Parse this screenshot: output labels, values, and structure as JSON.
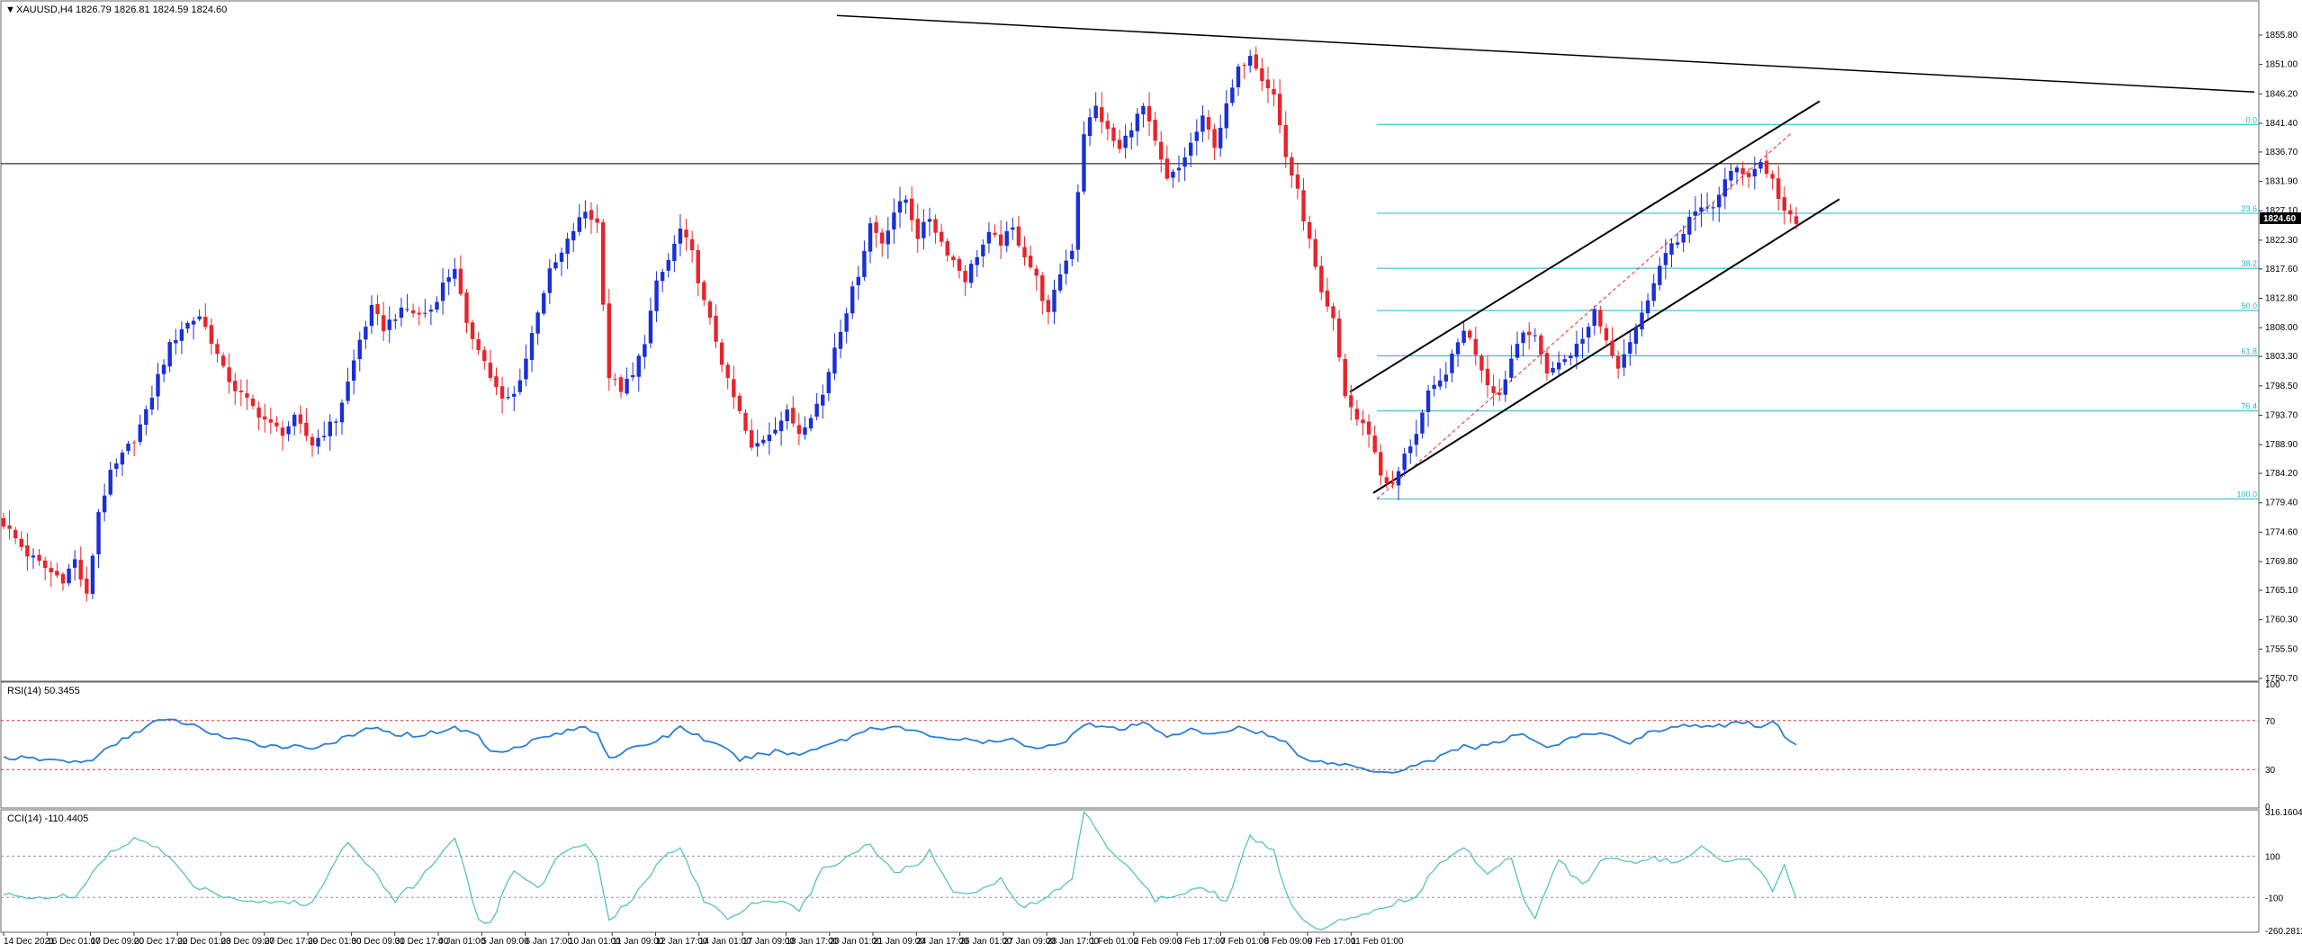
{
  "chart_data": {
    "type": "candlestick",
    "symbol": "XAUUSD,H4",
    "ohlc_header": "1826.79 1826.81 1824.59 1824.60",
    "title": "XAUUSD,H4  1826.79 1826.81 1824.59 1824.60",
    "current_price_label": "1824.60",
    "current_price": 1824.6,
    "ylim": [
      1750.7,
      1860.5
    ],
    "y_ticks": [
      "1855.80",
      "1851.00",
      "1846.20",
      "1841.40",
      "1836.70",
      "1831.90",
      "1827.10",
      "1822.30",
      "1817.60",
      "1812.80",
      "1808.00",
      "1803.30",
      "1798.50",
      "1793.70",
      "1788.90",
      "1784.20",
      "1779.40",
      "1774.60",
      "1769.80",
      "1765.10",
      "1760.30",
      "1755.50",
      "1750.70"
    ],
    "x_ticks": [
      "14 Dec 2021",
      "16 Dec 01:00",
      "17 Dec 09:00",
      "20 Dec 17:00",
      "22 Dec 01:00",
      "23 Dec 09:00",
      "27 Dec 17:00",
      "29 Dec 01:00",
      "30 Dec 09:00",
      "31 Dec 17:00",
      "4 Jan 01:00",
      "5 Jan 09:00",
      "6 Jan 17:00",
      "10 Jan 01:00",
      "11 Jan 09:00",
      "12 Jan 17:00",
      "14 Jan 01:00",
      "17 Jan 09:00",
      "18 Jan 17:00",
      "20 Jan 01:00",
      "21 Jan 09:00",
      "24 Jan 17:00",
      "26 Jan 01:00",
      "27 Jan 09:00",
      "28 Jan 17:00",
      "1 Feb 01:00",
      "2 Feb 09:00",
      "3 Feb 17:00",
      "7 Feb 01:00",
      "8 Feb 09:00",
      "9 Feb 17:00",
      "11 Feb 01:00"
    ],
    "close_anchors": [
      [
        0,
        1776
      ],
      [
        4,
        1771
      ],
      [
        8,
        1768
      ],
      [
        10,
        1767
      ],
      [
        12,
        1770
      ],
      [
        14,
        1764
      ],
      [
        16,
        1778
      ],
      [
        18,
        1784
      ],
      [
        20,
        1787
      ],
      [
        22,
        1790
      ],
      [
        24,
        1794
      ],
      [
        26,
        1800
      ],
      [
        28,
        1805
      ],
      [
        30,
        1808
      ],
      [
        33,
        1810
      ],
      [
        35,
        1806
      ],
      [
        37,
        1801
      ],
      [
        39,
        1798
      ],
      [
        42,
        1795
      ],
      [
        45,
        1792
      ],
      [
        47,
        1791
      ],
      [
        49,
        1793
      ],
      [
        52,
        1789
      ],
      [
        54,
        1791
      ],
      [
        56,
        1793
      ],
      [
        58,
        1799
      ],
      [
        60,
        1806
      ],
      [
        62,
        1811
      ],
      [
        64,
        1808
      ],
      [
        66,
        1810
      ],
      [
        68,
        1811
      ],
      [
        70,
        1810
      ],
      [
        72,
        1811
      ],
      [
        74,
        1815
      ],
      [
        76,
        1818
      ],
      [
        78,
        1808
      ],
      [
        80,
        1805
      ],
      [
        82,
        1800
      ],
      [
        84,
        1796
      ],
      [
        86,
        1797
      ],
      [
        88,
        1803
      ],
      [
        90,
        1811
      ],
      [
        92,
        1817
      ],
      [
        94,
        1820
      ],
      [
        96,
        1824
      ],
      [
        98,
        1827
      ],
      [
        100,
        1825
      ],
      [
        102,
        1800
      ],
      [
        104,
        1798
      ],
      [
        106,
        1800
      ],
      [
        108,
        1806
      ],
      [
        110,
        1815
      ],
      [
        112,
        1819
      ],
      [
        114,
        1824
      ],
      [
        116,
        1820
      ],
      [
        118,
        1812
      ],
      [
        120,
        1806
      ],
      [
        122,
        1799
      ],
      [
        124,
        1794
      ],
      [
        126,
        1788
      ],
      [
        128,
        1790
      ],
      [
        130,
        1792
      ],
      [
        132,
        1794
      ],
      [
        134,
        1791
      ],
      [
        136,
        1794
      ],
      [
        138,
        1797
      ],
      [
        140,
        1805
      ],
      [
        142,
        1811
      ],
      [
        144,
        1817
      ],
      [
        146,
        1825
      ],
      [
        148,
        1822
      ],
      [
        150,
        1827
      ],
      [
        152,
        1829
      ],
      [
        154,
        1823
      ],
      [
        156,
        1826
      ],
      [
        158,
        1822
      ],
      [
        160,
        1819
      ],
      [
        162,
        1816
      ],
      [
        164,
        1820
      ],
      [
        166,
        1823
      ],
      [
        168,
        1822
      ],
      [
        170,
        1824
      ],
      [
        172,
        1820
      ],
      [
        174,
        1816
      ],
      [
        176,
        1810
      ],
      [
        178,
        1817
      ],
      [
        180,
        1821
      ],
      [
        182,
        1840
      ],
      [
        184,
        1844
      ],
      [
        186,
        1840
      ],
      [
        188,
        1837
      ],
      [
        190,
        1841
      ],
      [
        192,
        1844
      ],
      [
        194,
        1838
      ],
      [
        196,
        1832
      ],
      [
        198,
        1834
      ],
      [
        200,
        1838
      ],
      [
        202,
        1842
      ],
      [
        204,
        1838
      ],
      [
        206,
        1844
      ],
      [
        208,
        1850
      ],
      [
        210,
        1853
      ],
      [
        212,
        1849
      ],
      [
        214,
        1846
      ],
      [
        216,
        1836
      ],
      [
        218,
        1830
      ],
      [
        220,
        1822
      ],
      [
        222,
        1813
      ],
      [
        224,
        1809
      ],
      [
        226,
        1797
      ],
      [
        228,
        1793
      ],
      [
        230,
        1791
      ],
      [
        232,
        1784
      ],
      [
        234,
        1782
      ],
      [
        236,
        1787
      ],
      [
        238,
        1791
      ],
      [
        240,
        1797
      ],
      [
        242,
        1799
      ],
      [
        244,
        1803
      ],
      [
        246,
        1808
      ],
      [
        248,
        1804
      ],
      [
        250,
        1799
      ],
      [
        252,
        1797
      ],
      [
        254,
        1803
      ],
      [
        256,
        1808
      ],
      [
        258,
        1806
      ],
      [
        260,
        1801
      ],
      [
        262,
        1802
      ],
      [
        264,
        1804
      ],
      [
        266,
        1806
      ],
      [
        268,
        1811
      ],
      [
        270,
        1806
      ],
      [
        272,
        1802
      ],
      [
        274,
        1806
      ],
      [
        276,
        1810
      ],
      [
        278,
        1816
      ],
      [
        280,
        1820
      ],
      [
        282,
        1822
      ],
      [
        284,
        1826
      ],
      [
        286,
        1827
      ],
      [
        288,
        1828
      ],
      [
        290,
        1832
      ],
      [
        292,
        1834
      ],
      [
        294,
        1833
      ],
      [
        296,
        1835
      ],
      [
        298,
        1832
      ],
      [
        300,
        1827
      ],
      [
        302,
        1824.6
      ]
    ],
    "resistance_line": [
      [
        930,
        1859
      ],
      [
        2505,
        1846.5
      ]
    ],
    "horizontal_line": 1834.8,
    "channel_upper": [
      [
        1500,
        1797.5
      ],
      [
        2022,
        1845
      ]
    ],
    "channel_lower": [
      [
        1526,
        1781
      ],
      [
        2044,
        1829
      ]
    ],
    "fib_start": 1530,
    "fib_end": 2510,
    "fib_levels": [
      {
        "label": "0.0",
        "price": 1841.2
      },
      {
        "label": "23.6",
        "price": 1826.7
      },
      {
        "label": "38.2",
        "price": 1817.7
      },
      {
        "label": "50.0",
        "price": 1810.8
      },
      {
        "label": "61.8",
        "price": 1803.4
      },
      {
        "label": "76.4",
        "price": 1794.4
      },
      {
        "label": "100.0",
        "price": 1780.0
      }
    ],
    "rsi": {
      "label": "RSI(14) 50.3455",
      "levels": [
        70,
        30
      ],
      "axis_labels": [
        "100",
        "70",
        "30",
        "0"
      ],
      "anchors": [
        [
          0,
          40
        ],
        [
          14,
          36
        ],
        [
          22,
          60
        ],
        [
          26,
          70
        ],
        [
          30,
          69
        ],
        [
          38,
          55
        ],
        [
          44,
          50
        ],
        [
          52,
          48
        ],
        [
          58,
          56
        ],
        [
          62,
          65
        ],
        [
          64,
          60
        ],
        [
          70,
          58
        ],
        [
          76,
          64
        ],
        [
          80,
          58
        ],
        [
          82,
          44
        ],
        [
          86,
          48
        ],
        [
          90,
          55
        ],
        [
          94,
          60
        ],
        [
          98,
          65
        ],
        [
          100,
          60
        ],
        [
          102,
          40
        ],
        [
          108,
          50
        ],
        [
          112,
          58
        ],
        [
          114,
          65
        ],
        [
          118,
          55
        ],
        [
          122,
          45
        ],
        [
          124,
          38
        ],
        [
          130,
          45
        ],
        [
          134,
          42
        ],
        [
          138,
          50
        ],
        [
          142,
          55
        ],
        [
          146,
          64
        ],
        [
          150,
          65
        ],
        [
          156,
          58
        ],
        [
          160,
          55
        ],
        [
          166,
          52
        ],
        [
          170,
          54
        ],
        [
          174,
          48
        ],
        [
          178,
          50
        ],
        [
          182,
          68
        ],
        [
          188,
          62
        ],
        [
          192,
          68
        ],
        [
          196,
          58
        ],
        [
          200,
          62
        ],
        [
          204,
          58
        ],
        [
          208,
          65
        ],
        [
          212,
          60
        ],
        [
          216,
          52
        ],
        [
          218,
          42
        ],
        [
          222,
          36
        ],
        [
          226,
          34
        ],
        [
          230,
          30
        ],
        [
          234,
          28
        ],
        [
          238,
          34
        ],
        [
          242,
          40
        ],
        [
          246,
          50
        ],
        [
          248,
          48
        ],
        [
          252,
          52
        ],
        [
          256,
          60
        ],
        [
          260,
          48
        ],
        [
          264,
          55
        ],
        [
          268,
          60
        ],
        [
          272,
          55
        ],
        [
          274,
          52
        ],
        [
          276,
          58
        ],
        [
          280,
          64
        ],
        [
          284,
          66
        ],
        [
          288,
          64
        ],
        [
          292,
          69
        ],
        [
          296,
          66
        ],
        [
          298,
          70
        ],
        [
          300,
          58
        ],
        [
          302,
          50
        ]
      ]
    },
    "cci": {
      "label": "CCI(14) -110.4405",
      "levels": [
        100,
        -100
      ],
      "axis_labels": [
        "316.1604",
        "100",
        "-100",
        "-260.2812"
      ],
      "anchors": [
        [
          0,
          -90
        ],
        [
          12,
          -100
        ],
        [
          18,
          120
        ],
        [
          22,
          180
        ],
        [
          26,
          145
        ],
        [
          32,
          -40
        ],
        [
          38,
          -100
        ],
        [
          44,
          -120
        ],
        [
          52,
          -130
        ],
        [
          58,
          180
        ],
        [
          62,
          40
        ],
        [
          66,
          -110
        ],
        [
          70,
          -20
        ],
        [
          76,
          200
        ],
        [
          80,
          -210
        ],
        [
          82,
          -230
        ],
        [
          86,
          40
        ],
        [
          90,
          -60
        ],
        [
          94,
          120
        ],
        [
          98,
          160
        ],
        [
          100,
          70
        ],
        [
          102,
          -220
        ],
        [
          106,
          -100
        ],
        [
          110,
          60
        ],
        [
          114,
          150
        ],
        [
          118,
          -110
        ],
        [
          122,
          -200
        ],
        [
          126,
          -130
        ],
        [
          130,
          -110
        ],
        [
          134,
          -170
        ],
        [
          138,
          30
        ],
        [
          142,
          100
        ],
        [
          146,
          160
        ],
        [
          150,
          20
        ],
        [
          154,
          60
        ],
        [
          156,
          120
        ],
        [
          160,
          -60
        ],
        [
          164,
          -80
        ],
        [
          168,
          -10
        ],
        [
          172,
          -160
        ],
        [
          176,
          -80
        ],
        [
          180,
          -20
        ],
        [
          182,
          330
        ],
        [
          186,
          150
        ],
        [
          190,
          30
        ],
        [
          194,
          -110
        ],
        [
          198,
          -80
        ],
        [
          202,
          -40
        ],
        [
          206,
          -120
        ],
        [
          210,
          200
        ],
        [
          214,
          120
        ],
        [
          216,
          -80
        ],
        [
          218,
          -180
        ],
        [
          222,
          -260
        ],
        [
          226,
          -200
        ],
        [
          230,
          -170
        ],
        [
          234,
          -130
        ],
        [
          238,
          -90
        ],
        [
          242,
          70
        ],
        [
          246,
          140
        ],
        [
          250,
          20
        ],
        [
          254,
          100
        ],
        [
          256,
          -100
        ],
        [
          258,
          -190
        ],
        [
          262,
          80
        ],
        [
          266,
          -40
        ],
        [
          270,
          100
        ],
        [
          274,
          60
        ],
        [
          278,
          90
        ],
        [
          282,
          70
        ],
        [
          286,
          140
        ],
        [
          290,
          60
        ],
        [
          294,
          90
        ],
        [
          298,
          -60
        ],
        [
          300,
          60
        ],
        [
          302,
          -110
        ]
      ]
    },
    "colors": {
      "bull": "#1a2fd6",
      "bear": "#e8242a",
      "fib": "#1fb8cc",
      "trend": "#000000",
      "rsi": "#2a7fd6",
      "cci": "#4ac0b8",
      "level": "#e03030",
      "grid": "#9a9a9a"
    }
  }
}
